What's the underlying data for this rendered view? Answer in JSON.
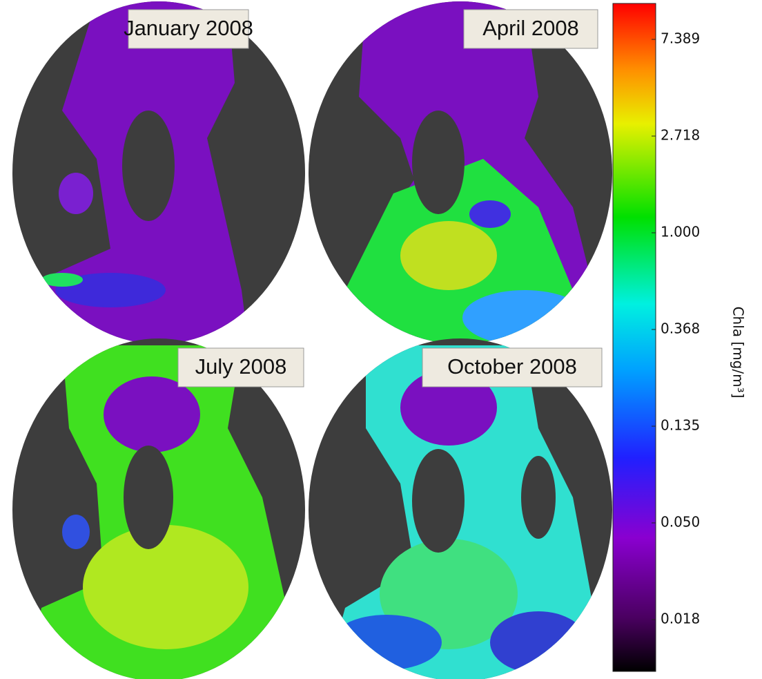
{
  "panels": [
    {
      "title": "January 2008"
    },
    {
      "title": "April 2008"
    },
    {
      "title": "July 2008"
    },
    {
      "title": "October 2008"
    }
  ],
  "colorbar": {
    "label": "Chla [mg/m³]",
    "ticks": [
      "7.389",
      "2.718",
      "1.000",
      "0.368",
      "0.135",
      "0.050",
      "0.018"
    ]
  }
}
